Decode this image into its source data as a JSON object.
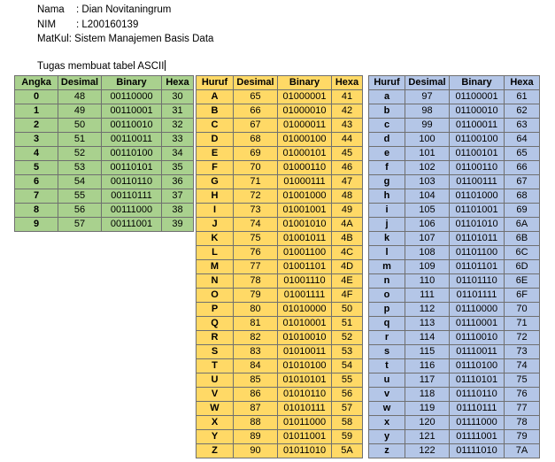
{
  "header": {
    "nama_label": "Nama",
    "nama_value": ": Dian Novitaningrum",
    "nim_label": "NIM",
    "nim_value": ": L200160139",
    "matkul_label": "MatKul",
    "matkul_value": ": Sistem Manajemen Basis Data",
    "title": "Tugas membuat tabel ASCII"
  },
  "colors": {
    "angka": "#a9d18e",
    "upper": "#ffd966",
    "lower": "#b4c6e7"
  },
  "tables": {
    "angka": {
      "headers": [
        "Angka",
        "Desimal",
        "Binary",
        "Hexa"
      ],
      "rows": [
        [
          "0",
          "48",
          "00110000",
          "30"
        ],
        [
          "1",
          "49",
          "00110001",
          "31"
        ],
        [
          "2",
          "50",
          "00110010",
          "32"
        ],
        [
          "3",
          "51",
          "00110011",
          "33"
        ],
        [
          "4",
          "52",
          "00110100",
          "34"
        ],
        [
          "5",
          "53",
          "00110101",
          "35"
        ],
        [
          "6",
          "54",
          "00110110",
          "36"
        ],
        [
          "7",
          "55",
          "00110111",
          "37"
        ],
        [
          "8",
          "56",
          "00111000",
          "38"
        ],
        [
          "9",
          "57",
          "00111001",
          "39"
        ]
      ]
    },
    "upper": {
      "headers": [
        "Huruf",
        "Desimal",
        "Binary",
        "Hexa"
      ],
      "rows": [
        [
          "A",
          "65",
          "01000001",
          "41"
        ],
        [
          "B",
          "66",
          "01000010",
          "42"
        ],
        [
          "C",
          "67",
          "01000011",
          "43"
        ],
        [
          "D",
          "68",
          "01000100",
          "44"
        ],
        [
          "E",
          "69",
          "01000101",
          "45"
        ],
        [
          "F",
          "70",
          "01000110",
          "46"
        ],
        [
          "G",
          "71",
          "01000111",
          "47"
        ],
        [
          "H",
          "72",
          "01001000",
          "48"
        ],
        [
          "I",
          "73",
          "01001001",
          "49"
        ],
        [
          "J",
          "74",
          "01001010",
          "4A"
        ],
        [
          "K",
          "75",
          "01001011",
          "4B"
        ],
        [
          "L",
          "76",
          "01001100",
          "4C"
        ],
        [
          "M",
          "77",
          "01001101",
          "4D"
        ],
        [
          "N",
          "78",
          "01001110",
          "4E"
        ],
        [
          "O",
          "79",
          "01001111",
          "4F"
        ],
        [
          "P",
          "80",
          "01010000",
          "50"
        ],
        [
          "Q",
          "81",
          "01010001",
          "51"
        ],
        [
          "R",
          "82",
          "01010010",
          "52"
        ],
        [
          "S",
          "83",
          "01010011",
          "53"
        ],
        [
          "T",
          "84",
          "01010100",
          "54"
        ],
        [
          "U",
          "85",
          "01010101",
          "55"
        ],
        [
          "V",
          "86",
          "01010110",
          "56"
        ],
        [
          "W",
          "87",
          "01010111",
          "57"
        ],
        [
          "X",
          "88",
          "01011000",
          "58"
        ],
        [
          "Y",
          "89",
          "01011001",
          "59"
        ],
        [
          "Z",
          "90",
          "01011010",
          "5A"
        ]
      ]
    },
    "lower": {
      "headers": [
        "Huruf",
        "Desimal",
        "Binary",
        "Hexa"
      ],
      "rows": [
        [
          "a",
          "97",
          "01100001",
          "61"
        ],
        [
          "b",
          "98",
          "01100010",
          "62"
        ],
        [
          "c",
          "99",
          "01100011",
          "63"
        ],
        [
          "d",
          "100",
          "01100100",
          "64"
        ],
        [
          "e",
          "101",
          "01100101",
          "65"
        ],
        [
          "f",
          "102",
          "01100110",
          "66"
        ],
        [
          "g",
          "103",
          "01100111",
          "67"
        ],
        [
          "h",
          "104",
          "01101000",
          "68"
        ],
        [
          "i",
          "105",
          "01101001",
          "69"
        ],
        [
          "j",
          "106",
          "01101010",
          "6A"
        ],
        [
          "k",
          "107",
          "01101011",
          "6B"
        ],
        [
          "l",
          "108",
          "01101100",
          "6C"
        ],
        [
          "m",
          "109",
          "01101101",
          "6D"
        ],
        [
          "n",
          "110",
          "01101110",
          "6E"
        ],
        [
          "o",
          "111",
          "01101111",
          "6F"
        ],
        [
          "p",
          "112",
          "01110000",
          "70"
        ],
        [
          "q",
          "113",
          "01110001",
          "71"
        ],
        [
          "r",
          "114",
          "01110010",
          "72"
        ],
        [
          "s",
          "115",
          "01110011",
          "73"
        ],
        [
          "t",
          "116",
          "01110100",
          "74"
        ],
        [
          "u",
          "117",
          "01110101",
          "75"
        ],
        [
          "v",
          "118",
          "01110110",
          "76"
        ],
        [
          "w",
          "119",
          "01110111",
          "77"
        ],
        [
          "x",
          "120",
          "01111000",
          "78"
        ],
        [
          "y",
          "121",
          "01111001",
          "79"
        ],
        [
          "z",
          "122",
          "01111010",
          "7A"
        ]
      ]
    }
  }
}
